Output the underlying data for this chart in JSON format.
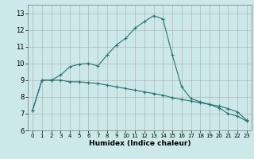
{
  "title": "",
  "xlabel": "Humidex (Indice chaleur)",
  "bg_color": "#cce8e8",
  "grid_color": "#aaaaaa",
  "line_color": "#2a7070",
  "curve1_x": [
    0,
    1,
    2,
    3,
    4,
    5,
    6,
    7,
    8,
    9,
    10,
    11,
    12,
    13,
    14,
    15,
    16,
    17,
    18,
    19,
    20,
    21,
    22,
    23
  ],
  "curve1_y": [
    7.2,
    9.0,
    9.0,
    9.3,
    9.8,
    9.95,
    10.0,
    9.85,
    10.5,
    11.1,
    11.5,
    12.1,
    12.5,
    12.85,
    12.65,
    10.5,
    8.6,
    7.9,
    7.7,
    7.55,
    7.35,
    7.0,
    6.85,
    6.55
  ],
  "curve2_x": [
    0,
    1,
    2,
    3,
    4,
    5,
    6,
    7,
    8,
    9,
    10,
    11,
    12,
    13,
    14,
    15,
    16,
    17,
    18,
    19,
    20,
    21,
    22,
    23
  ],
  "curve2_y": [
    7.2,
    9.0,
    9.0,
    9.0,
    8.9,
    8.9,
    8.85,
    8.8,
    8.7,
    8.6,
    8.5,
    8.4,
    8.3,
    8.2,
    8.1,
    7.95,
    7.85,
    7.75,
    7.65,
    7.55,
    7.45,
    7.3,
    7.1,
    6.6
  ],
  "xlim": [
    -0.5,
    23.5
  ],
  "ylim": [
    6,
    13.5
  ],
  "yticks": [
    6,
    7,
    8,
    9,
    10,
    11,
    12,
    13
  ],
  "xticks": [
    0,
    1,
    2,
    3,
    4,
    5,
    6,
    7,
    8,
    9,
    10,
    11,
    12,
    13,
    14,
    15,
    16,
    17,
    18,
    19,
    20,
    21,
    22,
    23
  ],
  "figsize": [
    3.2,
    2.0
  ],
  "dpi": 100
}
